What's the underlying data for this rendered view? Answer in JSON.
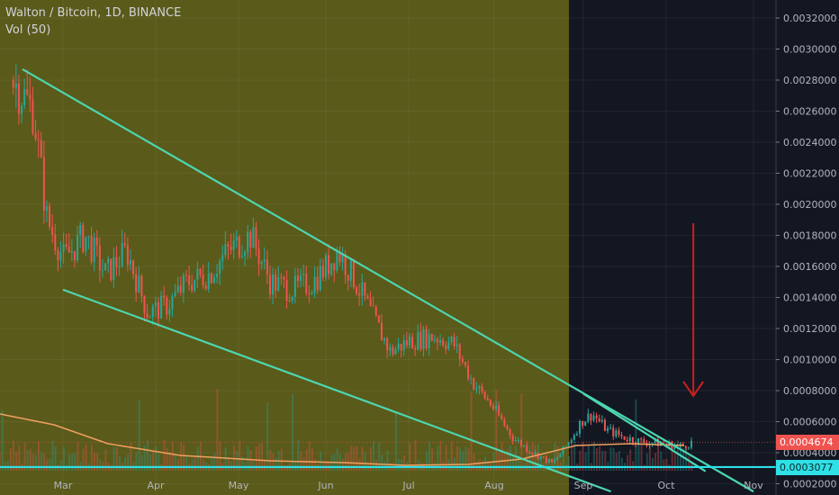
{
  "header": {
    "symbol_title": "Walton / Bitcoin, 1D, BINANCE",
    "volume_label": "Vol (50)"
  },
  "colors": {
    "background": "#131722",
    "highlight_zone": "#5a5a1a",
    "up_candle": "#26a69a",
    "down_candle": "#ef5350",
    "trendline": "#4dd6b0",
    "support_line": "#2fe0e6",
    "volume_ma": "#f0a060",
    "arrow": "#cc1f1f",
    "axis_text": "#b2b5be",
    "current_price_tag": "#ef5350",
    "support_tag": "#2fe0e6"
  },
  "chart_data": {
    "type": "candlestick",
    "title": "Walton / Bitcoin, 1D, BINANCE",
    "indicator": "Vol (50)",
    "x_ticks": [
      "Mar",
      "Apr",
      "May",
      "Jun",
      "Jul",
      "Aug",
      "Sep",
      "Oct",
      "Nov"
    ],
    "y_ticks": [
      "0.0002000",
      "0.0004000",
      "0.0006000",
      "0.0008000",
      "0.0010000",
      "0.0012000",
      "0.0014000",
      "0.0016000",
      "0.0018000",
      "0.0020000",
      "0.0022000",
      "0.0024000",
      "0.0026000",
      "0.0028000",
      "0.0030000",
      "0.0032000"
    ],
    "ylim": [
      0.0001,
      0.0032
    ],
    "grid": true,
    "price_path": [
      {
        "date": "Feb 14",
        "close": 0.0028
      },
      {
        "date": "Feb 20",
        "close": 0.0026
      },
      {
        "date": "Feb 24",
        "close": 0.0019
      },
      {
        "date": "Mar 1",
        "close": 0.00165
      },
      {
        "date": "Mar 8",
        "close": 0.0018
      },
      {
        "date": "Mar 15",
        "close": 0.00155
      },
      {
        "date": "Mar 22",
        "close": 0.0017
      },
      {
        "date": "Mar 29",
        "close": 0.0013
      },
      {
        "date": "Apr 5",
        "close": 0.00135
      },
      {
        "date": "Apr 12",
        "close": 0.0015
      },
      {
        "date": "Apr 20",
        "close": 0.00155
      },
      {
        "date": "Apr 27",
        "close": 0.0017
      },
      {
        "date": "May 5",
        "close": 0.0018
      },
      {
        "date": "May 12",
        "close": 0.0015
      },
      {
        "date": "May 20",
        "close": 0.00145
      },
      {
        "date": "May 27",
        "close": 0.0015
      },
      {
        "date": "Jun 1",
        "close": 0.0016
      },
      {
        "date": "Jun 5",
        "close": 0.0017
      },
      {
        "date": "Jun 10",
        "close": 0.00155
      },
      {
        "date": "Jun 17",
        "close": 0.0013
      },
      {
        "date": "Jun 24",
        "close": 0.00105
      },
      {
        "date": "Jul 1",
        "close": 0.00112
      },
      {
        "date": "Jul 10",
        "close": 0.00115
      },
      {
        "date": "Jul 17",
        "close": 0.0011
      },
      {
        "date": "Jul 24",
        "close": 0.00085
      },
      {
        "date": "Jul 31",
        "close": 0.0007
      },
      {
        "date": "Aug 7",
        "close": 0.0005
      },
      {
        "date": "Aug 14",
        "close": 0.0004
      },
      {
        "date": "Aug 21",
        "close": 0.00033
      },
      {
        "date": "Aug 26",
        "close": 0.00045
      },
      {
        "date": "Aug 31",
        "close": 0.0006
      },
      {
        "date": "Sep 4",
        "close": 0.00065
      },
      {
        "date": "Sep 9",
        "close": 0.00055
      },
      {
        "date": "Sep 15",
        "close": 0.0005
      },
      {
        "date": "Sep 22",
        "close": 0.00047
      },
      {
        "date": "Sep 29",
        "close": 0.00046
      },
      {
        "date": "Oct 6",
        "close": 0.00044
      },
      {
        "date": "Oct 10",
        "close": 0.0004674
      }
    ],
    "current_price": "0.0004674",
    "support_level": "0.0003077",
    "trendlines": [
      {
        "name": "upper-trendline",
        "from": {
          "date": "Feb 17",
          "price": 0.00287
        },
        "to": {
          "date": "Nov 1",
          "price": 0.00015
        }
      },
      {
        "name": "lower-trendline",
        "from": {
          "date": "Mar 1",
          "price": 0.00145
        },
        "to": {
          "date": "Sep 11",
          "price": 0.00015
        }
      },
      {
        "name": "short-trendline",
        "from": {
          "date": "Sep 1",
          "price": 0.00078
        },
        "to": {
          "date": "Oct 15",
          "price": 0.00028
        }
      }
    ],
    "highlight_zone": {
      "from_date": "Feb 5",
      "to_date": "Aug 27"
    },
    "annotation": {
      "type": "arrow-down",
      "date": "Oct 10"
    }
  }
}
